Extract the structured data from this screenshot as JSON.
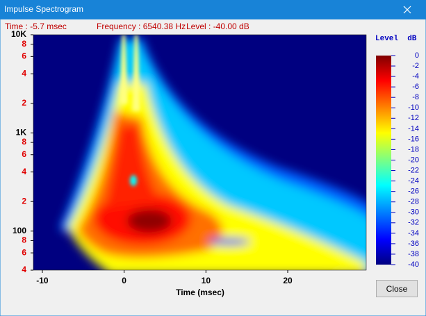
{
  "window": {
    "title": "Impulse Spectrogram",
    "close_button": "Close"
  },
  "status": {
    "time": "Time : -5.7 msec",
    "frequency": "Frequency : 6540.38 Hz",
    "level": "Level : -40.00 dB"
  },
  "chart_data": {
    "type": "heatmap",
    "xlabel": "Time (msec)",
    "xlim": [
      -11.1,
      29.6
    ],
    "xticks": [
      -10,
      0,
      10,
      20
    ],
    "ylim": [
      40,
      10000
    ],
    "log_y": true,
    "yticks": [
      {
        "value": 10000,
        "label": "10K"
      },
      {
        "value": 8000,
        "label": "8"
      },
      {
        "value": 6000,
        "label": "6"
      },
      {
        "value": 4000,
        "label": "4"
      },
      {
        "value": 2000,
        "label": "2"
      },
      {
        "value": 1000,
        "label": "1K"
      },
      {
        "value": 800,
        "label": "8"
      },
      {
        "value": 600,
        "label": "6"
      },
      {
        "value": 400,
        "label": "4"
      },
      {
        "value": 200,
        "label": "2"
      },
      100,
      {
        "value": 80,
        "label": "8"
      },
      {
        "value": 60,
        "label": "6"
      },
      {
        "value": 40,
        "label": "4"
      }
    ],
    "colorbar": {
      "title": "Level  dB",
      "lim": [
        -40,
        0
      ],
      "ticks": [
        0,
        -2,
        -4,
        -6,
        -8,
        -10,
        -12,
        -14,
        -16,
        -18,
        -20,
        -22,
        -24,
        -26,
        -28,
        -30,
        -32,
        -34,
        -36,
        -38,
        -40
      ]
    }
  }
}
